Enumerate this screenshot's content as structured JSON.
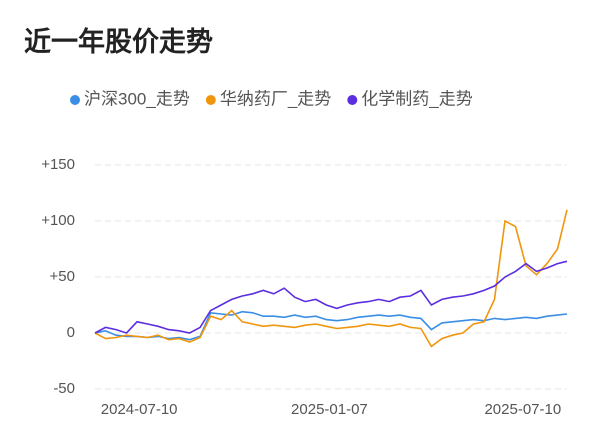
{
  "chart_data": {
    "type": "line",
    "title": "近一年股价走势",
    "x": [
      "2024-05-29",
      "2024-06-08",
      "2024-06-18",
      "2024-06-28",
      "2024-07-08",
      "2024-07-18",
      "2024-07-28",
      "2024-08-07",
      "2024-08-17",
      "2024-08-27",
      "2024-09-06",
      "2024-09-16",
      "2024-09-26",
      "2024-10-06",
      "2024-10-16",
      "2024-10-26",
      "2024-11-05",
      "2024-11-15",
      "2024-11-25",
      "2024-12-05",
      "2024-12-15",
      "2024-12-25",
      "2025-01-04",
      "2025-01-14",
      "2025-01-24",
      "2025-02-03",
      "2025-02-13",
      "2025-02-23",
      "2025-03-05",
      "2025-03-15",
      "2025-03-25",
      "2025-04-04",
      "2025-04-14",
      "2025-04-24",
      "2025-05-04",
      "2025-05-14",
      "2025-05-24",
      "2025-06-03",
      "2025-06-13",
      "2025-06-23",
      "2025-07-03",
      "2025-07-13",
      "2025-07-23",
      "2025-08-02",
      "2025-08-12",
      "2025-08-21"
    ],
    "series": [
      {
        "name": "沪深300_走势",
        "color": "#3a8ee6",
        "values": [
          0,
          2,
          -2,
          -3,
          -3,
          -4,
          -3,
          -5,
          -4,
          -6,
          -3,
          18,
          17,
          16,
          19,
          18,
          15,
          15,
          14,
          16,
          14,
          15,
          12,
          11,
          12,
          14,
          15,
          16,
          15,
          16,
          14,
          13,
          3,
          9,
          10,
          11,
          12,
          11,
          13,
          12,
          13,
          14,
          13,
          15,
          16,
          17
        ]
      },
      {
        "name": "华纳药厂_走势",
        "color": "#f0960e",
        "values": [
          0,
          -5,
          -4,
          -2,
          -3,
          -4,
          -2,
          -6,
          -5,
          -8,
          -4,
          15,
          12,
          20,
          10,
          8,
          6,
          7,
          6,
          5,
          7,
          8,
          6,
          4,
          5,
          6,
          8,
          7,
          6,
          8,
          5,
          4,
          -12,
          -5,
          -2,
          0,
          8,
          10,
          30,
          100,
          95,
          60,
          52,
          62,
          75,
          110
        ]
      },
      {
        "name": "化学制药_走势",
        "color": "#5b2ee0",
        "values": [
          0,
          5,
          3,
          0,
          10,
          8,
          6,
          3,
          2,
          0,
          5,
          20,
          25,
          30,
          33,
          35,
          38,
          35,
          40,
          32,
          28,
          30,
          25,
          22,
          25,
          27,
          28,
          30,
          28,
          32,
          33,
          38,
          25,
          30,
          32,
          33,
          35,
          38,
          42,
          50,
          55,
          62,
          55,
          58,
          62,
          64
        ]
      }
    ],
    "xlim": [
      "2024-05-29",
      "2025-08-21"
    ],
    "xticks": [
      "2024-07-10",
      "2025-01-07",
      "2025-07-10"
    ],
    "ylim": [
      -50,
      150
    ],
    "yticks": [
      {
        "value": 150,
        "label": "+150"
      },
      {
        "value": 100,
        "label": "+100"
      },
      {
        "value": 50,
        "label": "+50"
      },
      0,
      -50
    ],
    "grid": true
  }
}
